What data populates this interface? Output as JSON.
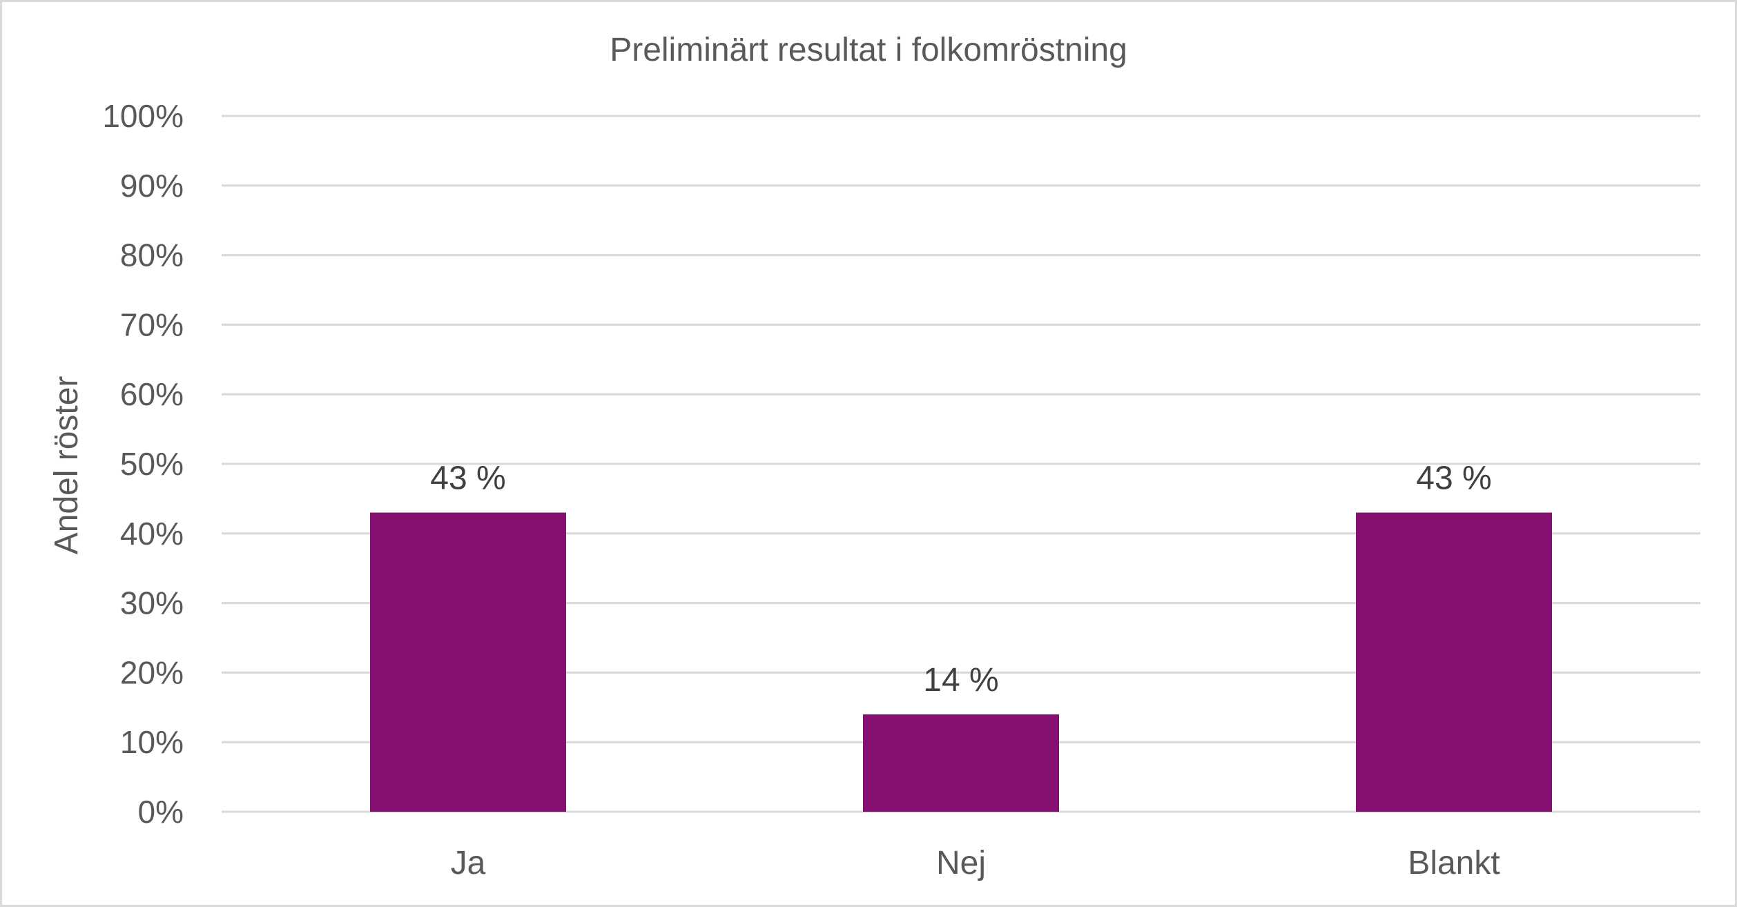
{
  "chart_data": {
    "type": "bar",
    "title": "Preliminärt resultat i folkomröstning",
    "xlabel": "",
    "ylabel": "Andel röster",
    "categories": [
      "Ja",
      "Nej",
      "Blankt"
    ],
    "values": [
      43,
      14,
      43
    ],
    "data_labels": [
      "43 %",
      "14 %",
      "43 %"
    ],
    "ylim": [
      0,
      100
    ],
    "yticks": [
      "0%",
      "10%",
      "20%",
      "30%",
      "40%",
      "50%",
      "60%",
      "70%",
      "80%",
      "90%",
      "100%"
    ],
    "grid": true,
    "legend": "none",
    "colors": {
      "bar": "#86106F",
      "grid": "#D9D9D9",
      "text": "#595959"
    }
  }
}
